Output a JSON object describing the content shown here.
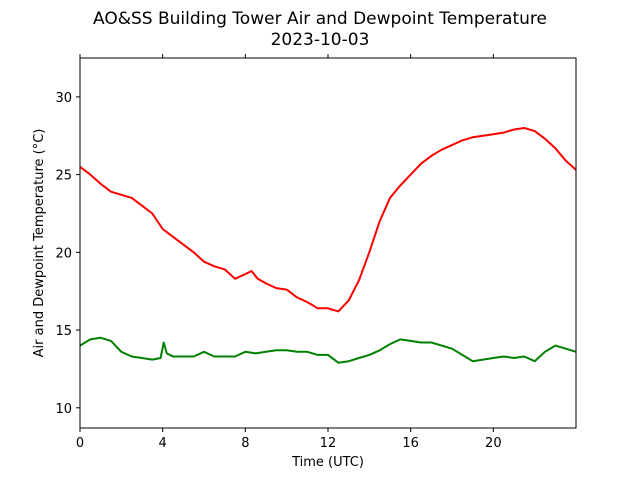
{
  "chart_data": {
    "type": "line",
    "title": "AO&SS Building Tower Air and Dewpoint Temperature",
    "subtitle": "2023-10-03",
    "xlabel": "Time (UTC)",
    "ylabel": "Air and Dewpoint Temperature (°C)",
    "xlim": [
      0,
      24
    ],
    "ylim": [
      8.7,
      32.5
    ],
    "xticks": [
      0,
      4,
      8,
      12,
      16,
      20
    ],
    "yticks": [
      10,
      15,
      20,
      25,
      30
    ],
    "grid": false,
    "legend": "none",
    "series": [
      {
        "color": "#ff0000",
        "x": [
          0,
          0.5,
          1,
          1.5,
          2,
          2.5,
          3,
          3.5,
          4,
          4.5,
          5,
          5.5,
          6,
          6.5,
          7,
          7.5,
          8,
          8.3,
          8.6,
          9,
          9.5,
          10,
          10.5,
          11,
          11.5,
          12,
          12.5,
          13,
          13.5,
          14,
          14.5,
          15,
          15.5,
          16,
          16.5,
          17,
          17.5,
          18,
          18.5,
          19,
          19.5,
          20,
          20.5,
          21,
          21.5,
          22,
          22.5,
          23,
          23.5,
          24
        ],
        "y": [
          25.5,
          25.0,
          24.4,
          23.9,
          23.7,
          23.5,
          23.0,
          22.5,
          21.5,
          21.0,
          20.5,
          20.0,
          19.4,
          19.1,
          18.9,
          18.3,
          18.6,
          18.8,
          18.3,
          18.0,
          17.7,
          17.6,
          17.1,
          16.8,
          16.4,
          16.4,
          16.2,
          16.9,
          18.2,
          20.0,
          22.0,
          23.5,
          24.3,
          25.0,
          25.7,
          26.2,
          26.6,
          26.9,
          27.2,
          27.4,
          27.5,
          27.6,
          27.7,
          27.9,
          28.0,
          27.8,
          27.3,
          26.7,
          25.9,
          25.3
        ]
      },
      {
        "color": "#008000",
        "x": [
          0,
          0.5,
          1,
          1.5,
          2,
          2.5,
          3,
          3.5,
          3.9,
          4.05,
          4.2,
          4.5,
          5,
          5.5,
          6,
          6.5,
          7,
          7.5,
          8,
          8.5,
          9,
          9.5,
          10,
          10.5,
          11,
          11.5,
          12,
          12.5,
          13,
          13.5,
          14,
          14.5,
          15,
          15.5,
          16,
          16.5,
          17,
          17.5,
          18,
          18.5,
          19,
          19.5,
          20,
          20.5,
          21,
          21.5,
          22,
          22.5,
          23,
          23.5,
          24
        ],
        "y": [
          14.0,
          14.4,
          14.5,
          14.3,
          13.6,
          13.3,
          13.2,
          13.1,
          13.2,
          14.2,
          13.5,
          13.3,
          13.3,
          13.3,
          13.6,
          13.3,
          13.3,
          13.3,
          13.6,
          13.5,
          13.6,
          13.7,
          13.7,
          13.6,
          13.6,
          13.4,
          13.4,
          12.9,
          13.0,
          13.2,
          13.4,
          13.7,
          14.1,
          14.4,
          14.3,
          14.2,
          14.2,
          14.0,
          13.8,
          13.4,
          13.0,
          13.1,
          13.2,
          13.3,
          13.2,
          13.3,
          13.0,
          13.6,
          14.0,
          13.8,
          13.6
        ]
      }
    ]
  }
}
